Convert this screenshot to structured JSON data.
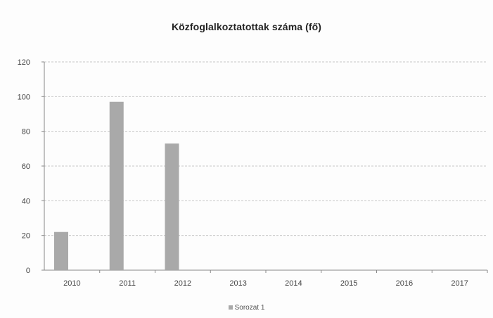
{
  "chart_data": {
    "type": "bar",
    "title": "Közfoglalkoztatottak száma (fő)",
    "categories": [
      "2010",
      "2011",
      "2012",
      "2013",
      "2014",
      "2015",
      "2016",
      "2017"
    ],
    "series": [
      {
        "name": "Sorozat 1",
        "values": [
          22,
          97,
          73,
          0,
          0,
          0,
          0,
          0
        ]
      }
    ],
    "ylim": [
      0,
      120
    ],
    "yticks": [
      0,
      20,
      40,
      60,
      80,
      100,
      120
    ],
    "grid": true,
    "legend_position": "bottom",
    "bar_color": "#a9a9a9",
    "grid_color": "#c8c8c8",
    "axis_color": "#888888"
  }
}
